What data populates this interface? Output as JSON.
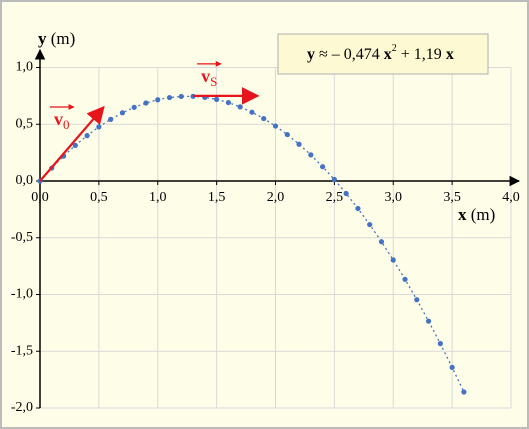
{
  "chart_data": {
    "type": "scatter",
    "x_label": {
      "var": "x",
      "unit": "(m)"
    },
    "y_label": {
      "var": "y",
      "unit": "(m)"
    },
    "equation": [
      "y",
      " ≈ – 0,474 ",
      "x",
      "2",
      " + 1,19 ",
      "x"
    ],
    "xlim": [
      0,
      4
    ],
    "ylim": [
      -2,
      1
    ],
    "xticks": [
      {
        "value": 0,
        "label": "0,0"
      },
      {
        "value": 0.5,
        "label": "0,5"
      },
      {
        "value": 1,
        "label": "1,0"
      },
      {
        "value": 1.5,
        "label": "1,5"
      },
      {
        "value": 2,
        "label": "2,0"
      },
      {
        "value": 2.5,
        "label": "2,5"
      },
      {
        "value": 3,
        "label": "3,0"
      },
      {
        "value": 3.5,
        "label": "3,5"
      },
      {
        "value": 4,
        "label": "4,0"
      }
    ],
    "yticks": [
      {
        "value": 1,
        "label": "1,0"
      },
      {
        "value": 0.5,
        "label": "0,5"
      },
      {
        "value": 0,
        "label": "0,0"
      },
      {
        "value": -0.5,
        "label": "-0,5"
      },
      {
        "value": -1,
        "label": "-1,0"
      },
      {
        "value": -1.5,
        "label": "-1,5"
      },
      {
        "value": -2,
        "label": "-2,0"
      }
    ],
    "grid": true,
    "series": [
      {
        "color": "#4472c4",
        "x": [
          0,
          0.1,
          0.2,
          0.3,
          0.4,
          0.5,
          0.6,
          0.7,
          0.8,
          0.9,
          1.0,
          1.1,
          1.2,
          1.3,
          1.4,
          1.5,
          1.6,
          1.7,
          1.8,
          1.9,
          2.0,
          2.1,
          2.2,
          2.3,
          2.4,
          2.5,
          2.6,
          2.7,
          2.8,
          2.9,
          3.0,
          3.1,
          3.2,
          3.3,
          3.4,
          3.5,
          3.6
        ],
        "values": [
          0,
          0.114,
          0.219,
          0.314,
          0.4,
          0.477,
          0.543,
          0.601,
          0.649,
          0.687,
          0.716,
          0.735,
          0.745,
          0.746,
          0.737,
          0.719,
          0.691,
          0.653,
          0.606,
          0.55,
          0.484,
          0.409,
          0.324,
          0.23,
          0.126,
          0.013,
          -0.11,
          -0.242,
          -0.384,
          -0.535,
          -0.696,
          -0.866,
          -1.046,
          -1.235,
          -1.433,
          -1.642,
          -1.859
        ]
      }
    ],
    "vectors": [
      {
        "symbol": "v",
        "subscript": "0",
        "color": "#e8141b",
        "start": [
          0,
          0
        ],
        "end": [
          0.54,
          0.65
        ]
      },
      {
        "symbol": "v",
        "subscript": "S",
        "color": "#e8141b",
        "start": [
          1.3,
          0.75
        ],
        "end": [
          1.85,
          0.75
        ]
      }
    ]
  }
}
